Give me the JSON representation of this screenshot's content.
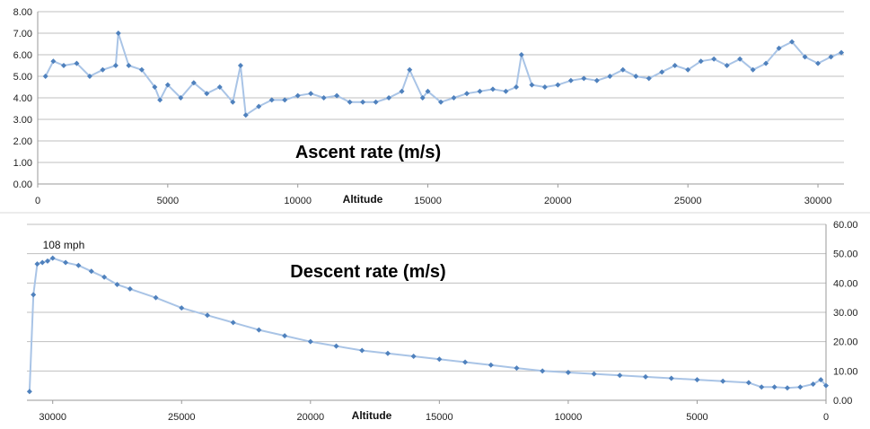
{
  "chart_data": [
    {
      "type": "line",
      "title": "Ascent rate (m/s)",
      "xlabel": "Altitude",
      "ylabel": "",
      "xlim": [
        0,
        31000
      ],
      "ylim": [
        0,
        8
      ],
      "x_ticks": [
        0,
        5000,
        10000,
        15000,
        20000,
        25000,
        30000
      ],
      "x_tick_labels": [
        "0",
        "5000",
        "10000",
        "15000",
        "20000",
        "25000",
        "30000"
      ],
      "y_ticks": [
        0,
        1,
        2,
        3,
        4,
        5,
        6,
        7,
        8
      ],
      "y_tick_labels": [
        "0.00",
        "1.00",
        "2.00",
        "3.00",
        "4.00",
        "5.00",
        "6.00",
        "7.00",
        "8.00"
      ],
      "grid": true,
      "x_reversed": false,
      "y_axis_side": "left",
      "marker": "diamond",
      "series_color": "#4f81bd",
      "line_color": "#a9c4e6",
      "series": [
        {
          "name": "Ascent rate",
          "x": [
            300,
            600,
            1000,
            1500,
            2000,
            2500,
            3000,
            3100,
            3500,
            4000,
            4500,
            4700,
            5000,
            5500,
            6000,
            6500,
            7000,
            7500,
            7800,
            8000,
            8500,
            9000,
            9500,
            10000,
            10500,
            11000,
            11500,
            12000,
            12500,
            13000,
            13500,
            14000,
            14300,
            14800,
            15000,
            15500,
            16000,
            16500,
            17000,
            17500,
            18000,
            18400,
            18600,
            19000,
            19500,
            20000,
            20500,
            21000,
            21500,
            22000,
            22500,
            23000,
            23500,
            24000,
            24500,
            25000,
            25500,
            26000,
            26500,
            27000,
            27500,
            28000,
            28500,
            29000,
            29500,
            30000,
            30500,
            30900
          ],
          "y": [
            5.0,
            5.7,
            5.5,
            5.6,
            5.0,
            5.3,
            5.5,
            7.0,
            5.5,
            5.3,
            4.5,
            3.9,
            4.6,
            4.0,
            4.7,
            4.2,
            4.5,
            3.8,
            5.5,
            3.2,
            3.6,
            3.9,
            3.9,
            4.1,
            4.2,
            4.0,
            4.1,
            3.8,
            3.8,
            3.8,
            4.0,
            4.3,
            5.3,
            4.0,
            4.3,
            3.8,
            4.0,
            4.2,
            4.3,
            4.4,
            4.3,
            4.5,
            6.0,
            4.6,
            4.5,
            4.6,
            4.8,
            4.9,
            4.8,
            5.0,
            5.3,
            5.0,
            4.9,
            5.2,
            5.5,
            5.3,
            5.7,
            5.8,
            5.5,
            5.8,
            5.3,
            5.6,
            6.3,
            6.6,
            5.9,
            5.6,
            5.9,
            6.1
          ]
        }
      ],
      "annotations": []
    },
    {
      "type": "line",
      "title": "Descent rate (m/s)",
      "xlabel": "Altitude",
      "ylabel": "",
      "xlim": [
        0,
        31000
      ],
      "ylim": [
        0,
        60
      ],
      "x_ticks": [
        30000,
        25000,
        20000,
        15000,
        10000,
        5000,
        0
      ],
      "x_tick_labels": [
        "30000",
        "25000",
        "20000",
        "15000",
        "10000",
        "5000",
        "0"
      ],
      "y_ticks": [
        0,
        10,
        20,
        30,
        40,
        50,
        60
      ],
      "y_tick_labels": [
        "0.00",
        "10.00",
        "20.00",
        "30.00",
        "40.00",
        "50.00",
        "60.00"
      ],
      "grid": true,
      "x_reversed": true,
      "y_axis_side": "right",
      "marker": "diamond",
      "series_color": "#4f81bd",
      "line_color": "#a9c4e6",
      "series": [
        {
          "name": "Descent rate",
          "x": [
            30900,
            30750,
            30600,
            30400,
            30200,
            30000,
            29500,
            29000,
            28500,
            28000,
            27500,
            27000,
            26000,
            25000,
            24000,
            23000,
            22000,
            21000,
            20000,
            19000,
            18000,
            17000,
            16000,
            15000,
            14000,
            13000,
            12000,
            11000,
            10000,
            9000,
            8000,
            7000,
            6000,
            5000,
            4000,
            3000,
            2500,
            2000,
            1500,
            1000,
            500,
            200,
            0
          ],
          "y": [
            3.0,
            36.0,
            46.5,
            47.0,
            47.5,
            48.5,
            47.0,
            46.0,
            44.0,
            42.0,
            39.5,
            38.0,
            35.0,
            31.5,
            29.0,
            26.5,
            24.0,
            22.0,
            20.0,
            18.5,
            17.0,
            16.0,
            15.0,
            14.0,
            13.0,
            12.0,
            11.0,
            10.0,
            9.5,
            9.0,
            8.5,
            8.0,
            7.5,
            7.0,
            6.5,
            6.0,
            4.5,
            4.5,
            4.2,
            4.5,
            5.5,
            7.0,
            5.0
          ]
        }
      ],
      "annotations": [
        {
          "text": "108 mph",
          "x": 29900,
          "y": 53
        }
      ]
    }
  ]
}
